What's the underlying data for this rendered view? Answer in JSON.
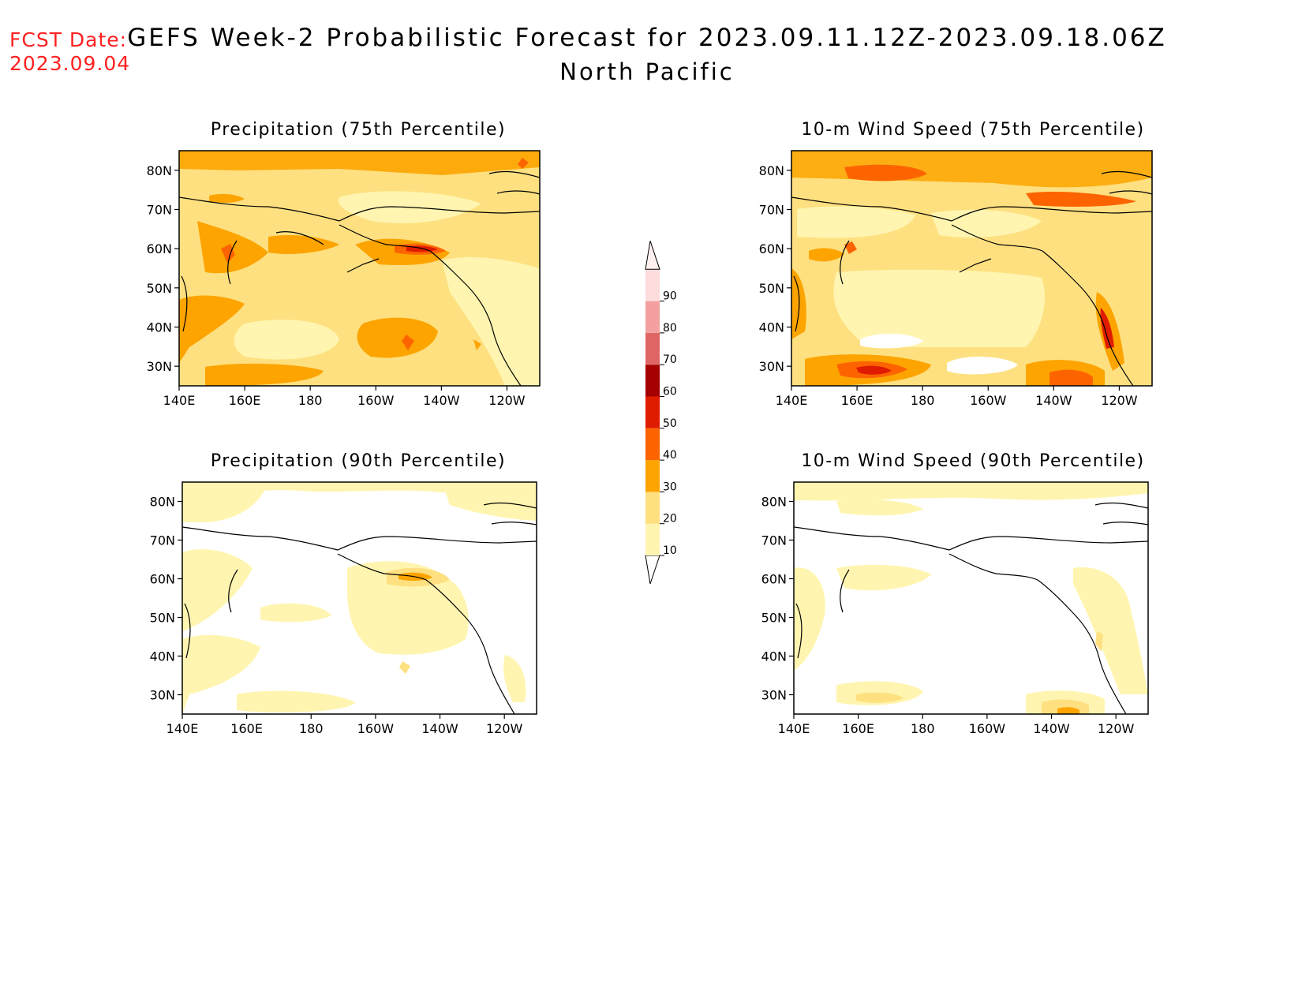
{
  "header": {
    "fcst_label": "FCST Date:",
    "fcst_date": "2023.09.04",
    "title": "GEFS Week-2 Probabilistic Forecast for 2023.09.11.12Z-2023.09.18.06Z",
    "subtitle": "North Pacific"
  },
  "axes": {
    "lat_ticks": [
      "80N",
      "70N",
      "60N",
      "50N",
      "40N",
      "30N"
    ],
    "lon_ticks": [
      "140E",
      "160E",
      "180",
      "160W",
      "140W",
      "120W"
    ]
  },
  "colors": {
    "c10": "#fff5b0",
    "c20": "#fee080",
    "c30": "#fda400",
    "c40": "#fd6400",
    "c50": "#e01c00",
    "c60": "#a50000",
    "c70": "#e06666",
    "c80": "#f4a0a0",
    "c90": "#fddcdc"
  },
  "colorbar": {
    "levels": [
      "10",
      "20",
      "30",
      "40",
      "50",
      "60",
      "70",
      "80",
      "90"
    ],
    "colors": [
      "#fff5b0",
      "#fee080",
      "#fda400",
      "#fd6400",
      "#e01c00",
      "#a50000",
      "#e06666",
      "#f4a0a0",
      "#fddcdc"
    ]
  },
  "panels": [
    {
      "id": "precip75",
      "title": "Precipitation (75th Percentile)",
      "intensity": "high"
    },
    {
      "id": "wind75",
      "title": "10-m Wind Speed (75th Percentile)",
      "intensity": "high"
    },
    {
      "id": "precip90",
      "title": "Precipitation (90th Percentile)",
      "intensity": "low"
    },
    {
      "id": "wind90",
      "title": "10-m Wind Speed (90th Percentile)",
      "intensity": "low"
    }
  ]
}
